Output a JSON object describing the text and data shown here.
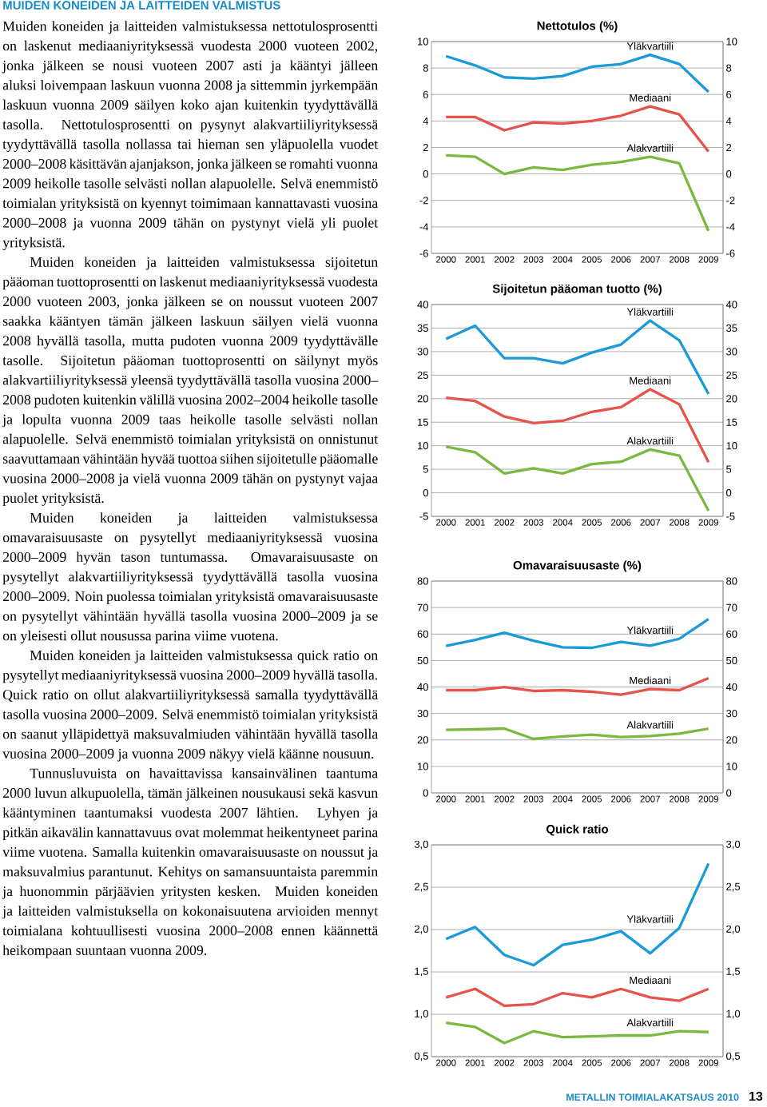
{
  "chart_data": [
    {
      "type": "other",
      "title": "MUIDEN KONEIDEN JA LAITTEIDEN VALMISTUS",
      "annotations": [
        "Muiden koneiden ja laitteiden valmistuksessa nettotulosprosentti on laskenut mediaaniyrityksessä vuodesta 2000 vuoteen 2002, jonka jälkeen se nousi vuoteen 2007 asti ja kääntyi jälleen aluksi loivempaan laskuun vuonna 2008 ja sittemmin jyrkempään laskuun vuonna 2009 säilyen koko ajan kuitenkin tyydyttävällä tasolla. Nettotulosprosentti on pysynyt alakvartiiliyrityksessä tyydyttävällä tasolla nollassa tai hieman sen yläpuolella vuodet 2000–2008 käsittävän ajanjakson, jonka jälkeen se romahti vuonna 2009 heikolle tasolle selvästi nollan alapuolelle. Selvä enemmistö toimialan yrityksistä on kyennyt toimimaan kannattavasti vuosina 2000–2008 ja vuonna 2009 tähän on pystynyt vielä yli puolet yrityksistä.",
        "Muiden koneiden ja laitteiden valmistuksessa sijoitetun pääoman tuottoprosentti on laskenut mediaaniyrityksessä vuodesta 2000 vuoteen 2003, jonka jälkeen se on noussut vuoteen 2007 saakka kääntyen tämän jälkeen laskuun säilyen vielä vuonna 2008 hyvällä tasolla, mutta pudoten vuonna 2009 tyydyttävälle tasolle. Sijoitetun pääoman tuottoprosentti on säilynyt myös alakvartiiliyrityksessä yleensä tyydyttävällä tasolla vuosina 2000–2008 pudoten kuitenkin välillä vuosina 2002–2004 heikolle tasolle ja lopulta vuonna 2009 taas heikolle tasolle selvästi nollan alapuolelle. Selvä enemmistö toimialan yrityksistä on onnistunut saavuttamaan vähintään hyvää tuottoa siihen sijoitetulle pääomalle vuosina 2000–2008 ja vielä vuonna 2009 tähän on pystynyt vajaa puolet yrityksistä.",
        "Muiden koneiden ja laitteiden valmistuksessa omavaraisuusaste on pysytellyt mediaaniyrityksessä vuosina 2000–2009 hyvän tason tuntumassa. Omavaraisuusaste on pysytellyt alakvartiiliyrityksessä tyydyttävällä tasolla vuosina 2000–2009. Noin puolessa toimialan yrityksistä omavaraisuusaste on pysytellyt vähintään hyvällä tasolla vuosina 2000–2009 ja se on yleisesti ollut nousussa parina viime vuotena.",
        "Muiden koneiden ja laitteiden valmistuksessa quick ratio on pysytellyt mediaaniyrityksessä vuosina 2000–2009 hyvällä tasolla. Quick ratio on ollut alakvartiiliyrityksessä samalla tyydyttävällä tasolla vuosina 2000–2009. Selvä enemmistö toimialan yrityksistä on saanut ylläpidettyä maksuvalmiuden vähintään hyvällä tasolla vuosina 2000–2009 ja vuonna 2009 näkyy vielä käänne nousuun.",
        "Tunnusluvuista on havaittavissa kansainvälinen taantuma 2000 luvun alkupuolella, tämän jälkeinen nousukausi sekä kasvun kääntyminen taantumaksi vuodesta 2007 lähtien. Lyhyen ja pitkän aikavälin kannattavuus ovat molemmat heikentyneet parina viime vuotena. Samalla kuitenkin omavaraisuusaste on noussut ja maksuvalmius parantunut. Kehitys on samansuuntaista paremmin ja huonommin pärjäävien yritysten kesken. Muiden koneiden ja laitteiden valmistuksella on kokonaisuutena arvioiden mennyt toimialana kohtuullisesti vuosina 2000–2008 ennen käännettä heikompaan suuntaan vuonna 2009.",
        "METALLIN TOIMIALAKATSAUS 2010",
        "13"
      ]
    },
    {
      "type": "line",
      "title": "Nettotulos (%)",
      "categories": [
        "2000",
        "2001",
        "2002",
        "2003",
        "2004",
        "2005",
        "2006",
        "2007",
        "2008",
        "2009"
      ],
      "series": [
        {
          "name": "Yläkvartiili",
          "color": "#1a9ad6",
          "values": [
            8.9,
            8.2,
            7.3,
            7.2,
            7.4,
            8.1,
            8.3,
            9.0,
            8.3,
            6.2
          ]
        },
        {
          "name": "Mediaani",
          "color": "#e5534b",
          "values": [
            4.3,
            4.3,
            3.3,
            3.9,
            3.8,
            4.0,
            4.4,
            5.1,
            4.5,
            1.7
          ]
        },
        {
          "name": "Alakvartiili",
          "color": "#7bb842",
          "values": [
            1.4,
            1.3,
            0.0,
            0.5,
            0.3,
            0.7,
            0.9,
            1.3,
            0.8,
            -4.3
          ]
        }
      ],
      "ylim": [
        -6,
        10
      ],
      "yticks": [
        -6,
        -4,
        -2,
        0,
        2,
        4,
        6,
        8,
        10
      ],
      "y2lim": [
        -6,
        10
      ],
      "y2ticks": [
        -6,
        -4,
        -2,
        0,
        2,
        4,
        6,
        8,
        10
      ],
      "grid": "y"
    },
    {
      "type": "line",
      "title": "Sijoitetun pääoman tuotto (%)",
      "categories": [
        "2000",
        "2001",
        "2002",
        "2003",
        "2004",
        "2005",
        "2006",
        "2007",
        "2008",
        "2009"
      ],
      "series": [
        {
          "name": "Yläkvartiili",
          "color": "#1a9ad6",
          "values": [
            32.7,
            35.5,
            28.6,
            28.6,
            27.5,
            29.8,
            31.5,
            36.6,
            32.4,
            21.0
          ]
        },
        {
          "name": "Mediaani",
          "color": "#e5534b",
          "values": [
            20.2,
            19.5,
            16.2,
            14.8,
            15.3,
            17.2,
            18.2,
            22.0,
            18.8,
            6.5
          ]
        },
        {
          "name": "Alakvartiili",
          "color": "#7bb842",
          "values": [
            9.8,
            8.6,
            4.1,
            5.2,
            4.1,
            6.1,
            6.6,
            9.2,
            7.9,
            -3.8
          ]
        }
      ],
      "ylim": [
        -5,
        40
      ],
      "yticks": [
        -5,
        0,
        5,
        10,
        15,
        20,
        25,
        30,
        35,
        40
      ],
      "y2lim": [
        -5,
        40
      ],
      "y2ticks": [
        -5,
        0,
        5,
        10,
        15,
        20,
        25,
        30,
        35,
        40
      ],
      "grid": "y"
    },
    {
      "type": "line",
      "title": "Omavaraisuusaste (%)",
      "categories": [
        "2000",
        "2001",
        "2002",
        "2003",
        "2004",
        "2005",
        "2006",
        "2007",
        "2008",
        "2009"
      ],
      "series": [
        {
          "name": "Yläkvartiili",
          "color": "#1a9ad6",
          "values": [
            55.5,
            57.8,
            60.5,
            57.5,
            55.0,
            54.8,
            57.0,
            55.6,
            58.2,
            65.6
          ]
        },
        {
          "name": "Mediaani",
          "color": "#e5534b",
          "values": [
            38.8,
            38.8,
            40.0,
            38.5,
            38.8,
            38.2,
            37.1,
            39.2,
            38.8,
            43.3
          ]
        },
        {
          "name": "Alakvartiili",
          "color": "#7bb842",
          "values": [
            23.8,
            24.0,
            24.3,
            20.4,
            21.3,
            22.0,
            21.1,
            21.5,
            22.4,
            24.3
          ]
        }
      ],
      "ylim": [
        0,
        80
      ],
      "yticks": [
        0,
        10,
        20,
        30,
        40,
        50,
        60,
        70,
        80
      ],
      "y2lim": [
        0,
        80
      ],
      "y2ticks": [
        0,
        10,
        20,
        30,
        40,
        50,
        60,
        70,
        80
      ],
      "grid": "y"
    },
    {
      "type": "line",
      "title": "Quick ratio",
      "categories": [
        "2000",
        "2001",
        "2002",
        "2003",
        "2004",
        "2005",
        "2006",
        "2007",
        "2008",
        "2009"
      ],
      "series": [
        {
          "name": "Yläkvartiili",
          "color": "#1a9ad6",
          "values": [
            1.89,
            2.03,
            1.7,
            1.58,
            1.82,
            1.88,
            1.98,
            1.72,
            2.02,
            2.78
          ]
        },
        {
          "name": "Mediaani",
          "color": "#e5534b",
          "values": [
            1.2,
            1.3,
            1.1,
            1.12,
            1.25,
            1.2,
            1.3,
            1.2,
            1.16,
            1.3
          ]
        },
        {
          "name": "Alakvartiili",
          "color": "#7bb842",
          "values": [
            0.9,
            0.85,
            0.66,
            0.8,
            0.73,
            0.74,
            0.75,
            0.75,
            0.8,
            0.79
          ]
        }
      ],
      "ylim": [
        0.5,
        3.0
      ],
      "yticks": [
        {
          "value": 0.5,
          "label": "0,5"
        },
        {
          "value": 1.0,
          "label": "1,0"
        },
        {
          "value": 1.5,
          "label": "1,5"
        },
        {
          "value": 2.0,
          "label": "2,0"
        },
        {
          "value": 2.5,
          "label": "2,5"
        },
        {
          "value": 3.0,
          "label": "3,0"
        }
      ],
      "y2lim": [
        0.5,
        3.0
      ],
      "y2ticks": [
        {
          "value": 0.5,
          "label": "0,5"
        },
        {
          "value": 1.0,
          "label": "1,0"
        },
        {
          "value": 1.5,
          "label": "1,5"
        },
        {
          "value": 2.0,
          "label": "2,0"
        },
        {
          "value": 2.5,
          "label": "2,5"
        },
        {
          "value": 3.0,
          "label": "3,0"
        }
      ],
      "grid": "y"
    }
  ]
}
